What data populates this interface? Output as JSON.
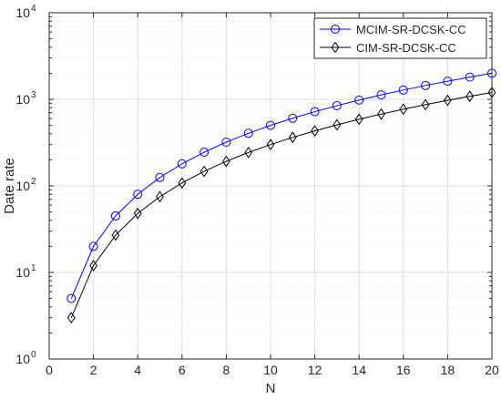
{
  "chart_data": {
    "type": "line",
    "xlabel": "N",
    "ylabel": "Date rate",
    "xlim": [
      0,
      20
    ],
    "ylim": [
      1,
      10000
    ],
    "yscale": "log",
    "grid": true,
    "legend_position": "top-right",
    "x_ticks": [
      "0",
      "2",
      "4",
      "6",
      "8",
      "10",
      "12",
      "14",
      "16",
      "18",
      "20"
    ],
    "y_ticks": [
      {
        "base": "10",
        "exp": "0"
      },
      {
        "base": "10",
        "exp": "1"
      },
      {
        "base": "10",
        "exp": "2"
      },
      {
        "base": "10",
        "exp": "3"
      },
      {
        "base": "10",
        "exp": "4"
      }
    ],
    "x": [
      1,
      2,
      3,
      4,
      5,
      6,
      7,
      8,
      9,
      10,
      11,
      12,
      13,
      14,
      15,
      16,
      17,
      18,
      19,
      20
    ],
    "series": [
      {
        "name": "MCIM-SR-DCSK-CC",
        "color": "#0000ff",
        "marker": "circle",
        "values": [
          5,
          20,
          45,
          80,
          125,
          180,
          245,
          320,
          405,
          500,
          605,
          720,
          845,
          980,
          1125,
          1280,
          1445,
          1620,
          1805,
          2000
        ]
      },
      {
        "name": "CIM-SR-DCSK-CC",
        "color": "#000000",
        "marker": "diamond",
        "values": [
          3,
          12,
          27,
          48,
          75,
          108,
          147,
          192,
          243,
          300,
          363,
          432,
          507,
          588,
          675,
          768,
          867,
          972,
          1083,
          1200
        ]
      }
    ]
  }
}
